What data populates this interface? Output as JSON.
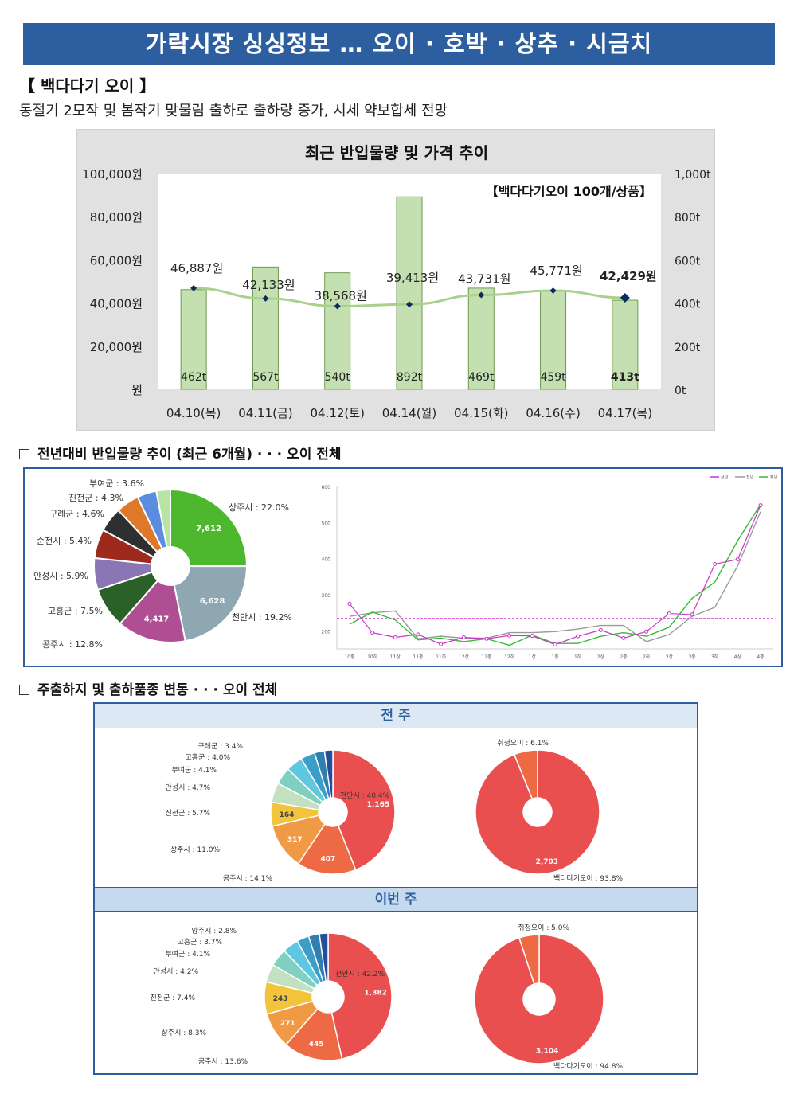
{
  "header": {
    "title": "가락시장 싱싱정보 … 오이 · 호박 · 상추 · 시금치"
  },
  "section": {
    "title": "【 백다다기 오이 】",
    "summary": "동절기 2모작 및 봄작기 맞물림 출하로 출하량 증가, 시세 약보합세 전망"
  },
  "chart_data": [
    {
      "type": "bar",
      "title": "최근 반입물량 및 가격 추이",
      "subtitle": "【백다다기오이 100개/상품】",
      "categories": [
        "04.10(목)",
        "04.11(금)",
        "04.12(토)",
        "04.14(월)",
        "04.15(화)",
        "04.16(수)",
        "04.17(목)"
      ],
      "series": [
        {
          "name": "반입물량",
          "axis": "right",
          "values": [
            462,
            567,
            540,
            892,
            469,
            459,
            413
          ],
          "labels": [
            "462t",
            "567t",
            "540t",
            "892t",
            "469t",
            "459t",
            "413t"
          ],
          "color": "#c4e0b0"
        },
        {
          "name": "가격",
          "axis": "left",
          "type": "line",
          "values": [
            46887,
            42133,
            38568,
            39413,
            43731,
            45771,
            42429
          ],
          "labels": [
            "46,887원",
            "42,133원",
            "38,568원",
            "39,413원",
            "43,731원",
            "45,771원",
            "42,429원"
          ],
          "color": "#a9d18e"
        }
      ],
      "y_left": {
        "ticks": [
          "원",
          "20,000원",
          "40,000원",
          "60,000원",
          "80,000원",
          "100,000원"
        ],
        "ylim": [
          0,
          100000
        ]
      },
      "y_right": {
        "ticks": [
          "0t",
          "200t",
          "400t",
          "600t",
          "800t",
          "1,000t"
        ],
        "ylim": [
          0,
          1000
        ]
      }
    },
    {
      "type": "pie",
      "title": "전년대비 반입물량 추이 (최근 6개월) · · · 오이 전체",
      "slices": [
        {
          "label": "상주시 : 22.0%",
          "value": 22.0,
          "count": "7,612",
          "color": "#4db82d"
        },
        {
          "label": "천안시 : 19.2%",
          "value": 19.2,
          "count": "6,628",
          "color": "#8fa7b0"
        },
        {
          "label": "공주시 : 12.8%",
          "value": 12.8,
          "count": "4,417",
          "color": "#b04e93"
        },
        {
          "label": "고흥군 : 7.5%",
          "value": 7.5,
          "count": "",
          "color": "#2b6128"
        },
        {
          "label": "안성시 : 5.9%",
          "value": 5.9,
          "count": "",
          "color": "#8a76b5"
        },
        {
          "label": "순천시 : 5.4%",
          "value": 5.4,
          "count": "",
          "color": "#9e2a1e"
        },
        {
          "label": "구례군 : 4.6%",
          "value": 4.6,
          "count": "",
          "color": "#2f2f2f"
        },
        {
          "label": "진천군 : 4.3%",
          "value": 4.3,
          "count": "",
          "color": "#e0782a"
        },
        {
          "label": "부여군 : 3.6%",
          "value": 3.6,
          "count": "",
          "color": "#5a8de0"
        },
        {
          "label": "",
          "value": 2.6,
          "count": "",
          "color": "#b7e3a4"
        }
      ]
    },
    {
      "type": "line",
      "legend": [
        "금년",
        "전년",
        "평년"
      ],
      "x": [
        "10중",
        "10하",
        "11상",
        "11중",
        "11하",
        "12상",
        "12중",
        "12하",
        "1상",
        "1중",
        "1하",
        "2상",
        "2중",
        "2하",
        "3상",
        "3중",
        "3하",
        "4상",
        "4중"
      ],
      "ylim": [
        150,
        600
      ],
      "y_ticks": [
        "200",
        "300",
        "400",
        "500",
        "600"
      ],
      "series": [
        {
          "name": "금년",
          "color": "#cc33cc",
          "values": [
            275,
            195,
            182,
            190,
            163,
            182,
            178,
            187,
            186,
            162,
            185,
            202,
            180,
            198,
            248,
            245,
            385,
            398,
            548
          ]
        },
        {
          "name": "전년",
          "color": "#9a9a9a",
          "values": [
            240,
            250,
            255,
            178,
            185,
            180,
            180,
            195,
            195,
            198,
            205,
            215,
            215,
            170,
            190,
            240,
            265,
            380,
            530
          ]
        },
        {
          "name": "평년",
          "color": "#33bb33",
          "values": [
            218,
            252,
            230,
            175,
            180,
            170,
            178,
            160,
            188,
            165,
            165,
            185,
            195,
            185,
            210,
            290,
            335,
            450,
            550
          ]
        }
      ],
      "reference_value": 235
    },
    {
      "type": "pie",
      "title": "주출하지 및 출하품종 변동 · · · 오이 전체",
      "week": "전 주",
      "group": "주출하지",
      "slices": [
        {
          "label": "천안시 : 40.4%",
          "value": 40.4,
          "count": "1,165",
          "color": "#e94f4f"
        },
        {
          "label": "공주시 : 14.1%",
          "value": 14.1,
          "count": "407",
          "color": "#ee6a45"
        },
        {
          "label": "상주시 : 11.0%",
          "value": 11.0,
          "count": "317",
          "color": "#f09a45"
        },
        {
          "label": "진천군 : 5.7%",
          "value": 5.7,
          "count": "164",
          "color": "#f2c43c"
        },
        {
          "label": "안성시 : 4.7%",
          "value": 4.7,
          "count": "",
          "color": "#c3e0c0"
        },
        {
          "label": "부여군 : 4.1%",
          "value": 4.1,
          "count": "",
          "color": "#7fd0c0"
        },
        {
          "label": "고흥군 : 4.0%",
          "value": 4.0,
          "count": "",
          "color": "#5fc7e0"
        },
        {
          "label": "구례군 : 3.4%",
          "value": 3.4,
          "count": "",
          "color": "#3a9ec9"
        },
        {
          "label": "",
          "value": 2.4,
          "count": "",
          "color": "#2f7fb0"
        },
        {
          "label": "",
          "value": 2.0,
          "count": "",
          "color": "#264d9b"
        }
      ]
    },
    {
      "type": "pie",
      "week": "전 주",
      "group": "출하품종",
      "slices": [
        {
          "label": "백다다기오이 : 93.8%",
          "value": 93.8,
          "count": "2,703",
          "color": "#e94f4f"
        },
        {
          "label": "취청오이 : 6.1%",
          "value": 6.1,
          "count": "",
          "color": "#ee6a45"
        }
      ]
    },
    {
      "type": "pie",
      "week": "이번 주",
      "group": "주출하지",
      "slices": [
        {
          "label": "천안시 : 42.2%",
          "value": 42.2,
          "count": "1,382",
          "color": "#e94f4f"
        },
        {
          "label": "공주시 : 13.6%",
          "value": 13.6,
          "count": "445",
          "color": "#ee6a45"
        },
        {
          "label": "상주시 : 8.3%",
          "value": 8.3,
          "count": "271",
          "color": "#f09a45"
        },
        {
          "label": "진천군 : 7.4%",
          "value": 7.4,
          "count": "243",
          "color": "#f2c43c"
        },
        {
          "label": "안성시 : 4.2%",
          "value": 4.2,
          "count": "",
          "color": "#c3e0c0"
        },
        {
          "label": "부여군 : 4.1%",
          "value": 4.1,
          "count": "",
          "color": "#7fd0c0"
        },
        {
          "label": "고흥군 : 3.7%",
          "value": 3.7,
          "count": "",
          "color": "#5fc7e0"
        },
        {
          "label": "양주시 : 2.8%",
          "value": 2.8,
          "count": "",
          "color": "#3a9ec9"
        },
        {
          "label": "",
          "value": 2.5,
          "count": "",
          "color": "#2f7fb0"
        },
        {
          "label": "",
          "value": 2.0,
          "count": "",
          "color": "#264d9b"
        }
      ]
    },
    {
      "type": "pie",
      "week": "이번 주",
      "group": "출하품종",
      "slices": [
        {
          "label": "백다다기오이 : 94.8%",
          "value": 94.8,
          "count": "3,104",
          "color": "#e94f4f"
        },
        {
          "label": "취청오이 : 5.0%",
          "value": 5.0,
          "count": "",
          "color": "#ee6a45"
        }
      ]
    }
  ],
  "subsections": {
    "trend_title": "전년대비 반입물량 추이 (최근 6개월) · · · 오이 전체",
    "origin_title": "주출하지 및 출하품종 변동 · · · 오이 전체",
    "prev_week": "전 주",
    "this_week": "이번 주"
  }
}
